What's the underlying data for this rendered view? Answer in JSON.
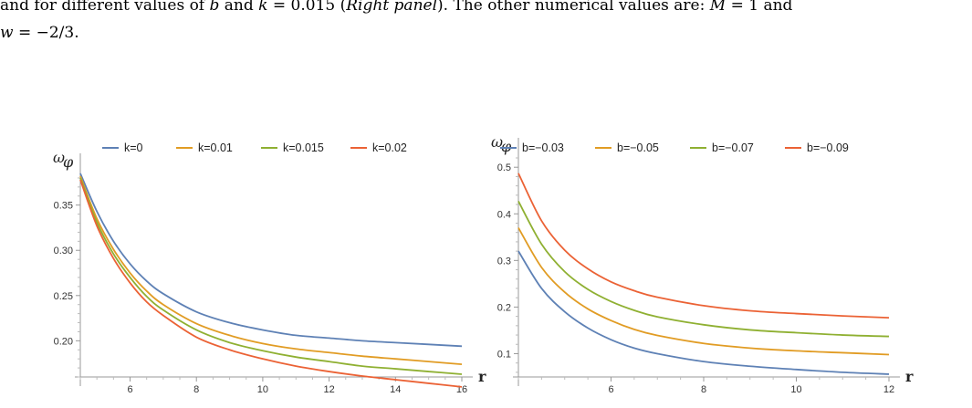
{
  "caption": {
    "line1": {
      "t1": "and for different values of ",
      "v1": "b",
      "t2": " and ",
      "v2": "k",
      "t3": " = 0.015 (",
      "p1": "Right panel",
      "t4": "). The other numerical values are: ",
      "v3": "M",
      "t5": " = 1 and"
    },
    "line2": {
      "v1": "w",
      "t1": " = −2/3."
    }
  },
  "colors": {
    "blue": "#5e81b5",
    "orange": "#e19c24",
    "green": "#8fb032",
    "red": "#eb6235"
  },
  "chart_data": [
    {
      "type": "line",
      "ylabel": "ω",
      "ylabel_sub": "φ",
      "xlabel": "r",
      "xlim": [
        4.5,
        16
      ],
      "ylim": [
        0.16,
        0.385
      ],
      "x_axis_crossing": 0.16,
      "xticks": [
        6,
        8,
        10,
        12,
        14,
        16
      ],
      "xtick_labels": [
        "6",
        "8",
        "10",
        "12",
        "14",
        "16"
      ],
      "yticks": [
        0.2,
        0.25,
        0.3,
        0.35
      ],
      "ytick_labels": [
        "0.20",
        "0.25",
        "0.30",
        "0.35"
      ],
      "legend_position": "top",
      "x": [
        4.5,
        5,
        5.5,
        6,
        6.5,
        7,
        8,
        9,
        10,
        11,
        12,
        13,
        14,
        15,
        16
      ],
      "series": [
        {
          "name": "k=0",
          "color": "#5e81b5",
          "values": [
            0.385,
            0.343,
            0.31,
            0.285,
            0.266,
            0.252,
            0.232,
            0.22,
            0.212,
            0.206,
            0.203,
            0.2,
            0.198,
            0.196,
            0.194
          ]
        },
        {
          "name": "k=0.01",
          "color": "#e19c24",
          "values": [
            0.382,
            0.335,
            0.301,
            0.275,
            0.255,
            0.24,
            0.219,
            0.206,
            0.197,
            0.191,
            0.187,
            0.183,
            0.18,
            0.177,
            0.174
          ]
        },
        {
          "name": "k=0.015",
          "color": "#8fb032",
          "values": [
            0.38,
            0.331,
            0.296,
            0.27,
            0.249,
            0.234,
            0.212,
            0.198,
            0.189,
            0.182,
            0.177,
            0.172,
            0.169,
            0.166,
            0.163
          ]
        },
        {
          "name": "k=0.02",
          "color": "#eb6235",
          "values": [
            0.378,
            0.327,
            0.291,
            0.264,
            0.243,
            0.228,
            0.204,
            0.19,
            0.18,
            0.172,
            0.166,
            0.161,
            0.157,
            0.153,
            0.149
          ]
        }
      ]
    },
    {
      "type": "line",
      "ylabel": "ω",
      "ylabel_sub": "φ",
      "xlabel": "r",
      "xlim": [
        4,
        12
      ],
      "ylim": [
        0.05,
        0.52
      ],
      "x_axis_crossing": 0.05,
      "xticks": [
        6,
        8,
        10,
        12
      ],
      "xtick_labels": [
        "6",
        "8",
        "10",
        "12"
      ],
      "yticks": [
        0.1,
        0.2,
        0.3,
        0.4,
        0.5
      ],
      "ytick_labels": [
        "0.1",
        "0.2",
        "0.3",
        "0.4",
        "0.5"
      ],
      "legend_position": "top",
      "x": [
        4,
        4.5,
        5,
        5.5,
        6,
        6.5,
        7,
        8,
        9,
        10,
        11,
        12
      ],
      "series": [
        {
          "name": "b=−0.03",
          "color": "#5e81b5",
          "values": [
            0.32,
            0.24,
            0.19,
            0.155,
            0.13,
            0.112,
            0.1,
            0.083,
            0.073,
            0.066,
            0.06,
            0.056
          ]
        },
        {
          "name": "b=−0.05",
          "color": "#e19c24",
          "values": [
            0.37,
            0.285,
            0.232,
            0.196,
            0.171,
            0.152,
            0.139,
            0.122,
            0.112,
            0.106,
            0.102,
            0.098
          ]
        },
        {
          "name": "b=−0.07",
          "color": "#8fb032",
          "values": [
            0.427,
            0.335,
            0.276,
            0.238,
            0.212,
            0.193,
            0.179,
            0.162,
            0.151,
            0.145,
            0.14,
            0.137
          ]
        },
        {
          "name": "b=−0.09",
          "color": "#eb6235",
          "values": [
            0.487,
            0.385,
            0.322,
            0.282,
            0.254,
            0.235,
            0.221,
            0.203,
            0.192,
            0.186,
            0.181,
            0.177
          ]
        }
      ]
    }
  ]
}
